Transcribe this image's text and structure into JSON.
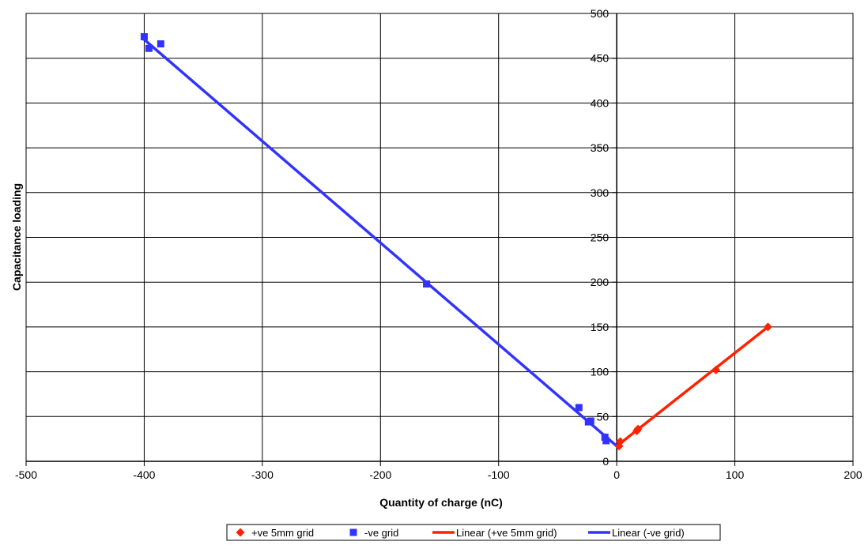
{
  "chart_data": {
    "type": "scatter",
    "title": "",
    "xlabel": "Quantity of charge (nC)",
    "ylabel": "Capacitance loading",
    "xlim": [
      -500,
      200
    ],
    "ylim": [
      0,
      500
    ],
    "x_ticks": [
      -500,
      -400,
      -300,
      -200,
      -100,
      0,
      100,
      200
    ],
    "y_ticks": [
      0,
      50,
      100,
      150,
      200,
      250,
      300,
      350,
      400,
      450,
      500
    ],
    "grid": true,
    "legend_position": "bottom",
    "series": [
      {
        "name": "+ve 5mm grid",
        "kind": "markers",
        "marker": "diamond",
        "color": "#ff2200",
        "points": [
          [
            2,
            17
          ],
          [
            3,
            22
          ],
          [
            17,
            34
          ],
          [
            18,
            36
          ],
          [
            84,
            102
          ],
          [
            128,
            150
          ]
        ]
      },
      {
        "name": "-ve grid",
        "kind": "markers",
        "marker": "square",
        "color": "#3333ff",
        "points": [
          [
            -400,
            474
          ],
          [
            -396,
            461
          ],
          [
            -386,
            466
          ],
          [
            -161,
            198
          ],
          [
            -32,
            60
          ],
          [
            -24,
            44
          ],
          [
            -22,
            45
          ],
          [
            -10,
            27
          ],
          [
            -9,
            23
          ]
        ]
      },
      {
        "name": "Linear (+ve 5mm grid)",
        "kind": "line",
        "color": "#ff2200",
        "points": [
          [
            0,
            17
          ],
          [
            128,
            150
          ]
        ]
      },
      {
        "name": "Linear (-ve grid)",
        "kind": "line",
        "color": "#3333ff",
        "points": [
          [
            -401,
            472
          ],
          [
            0,
            17
          ]
        ]
      }
    ]
  }
}
